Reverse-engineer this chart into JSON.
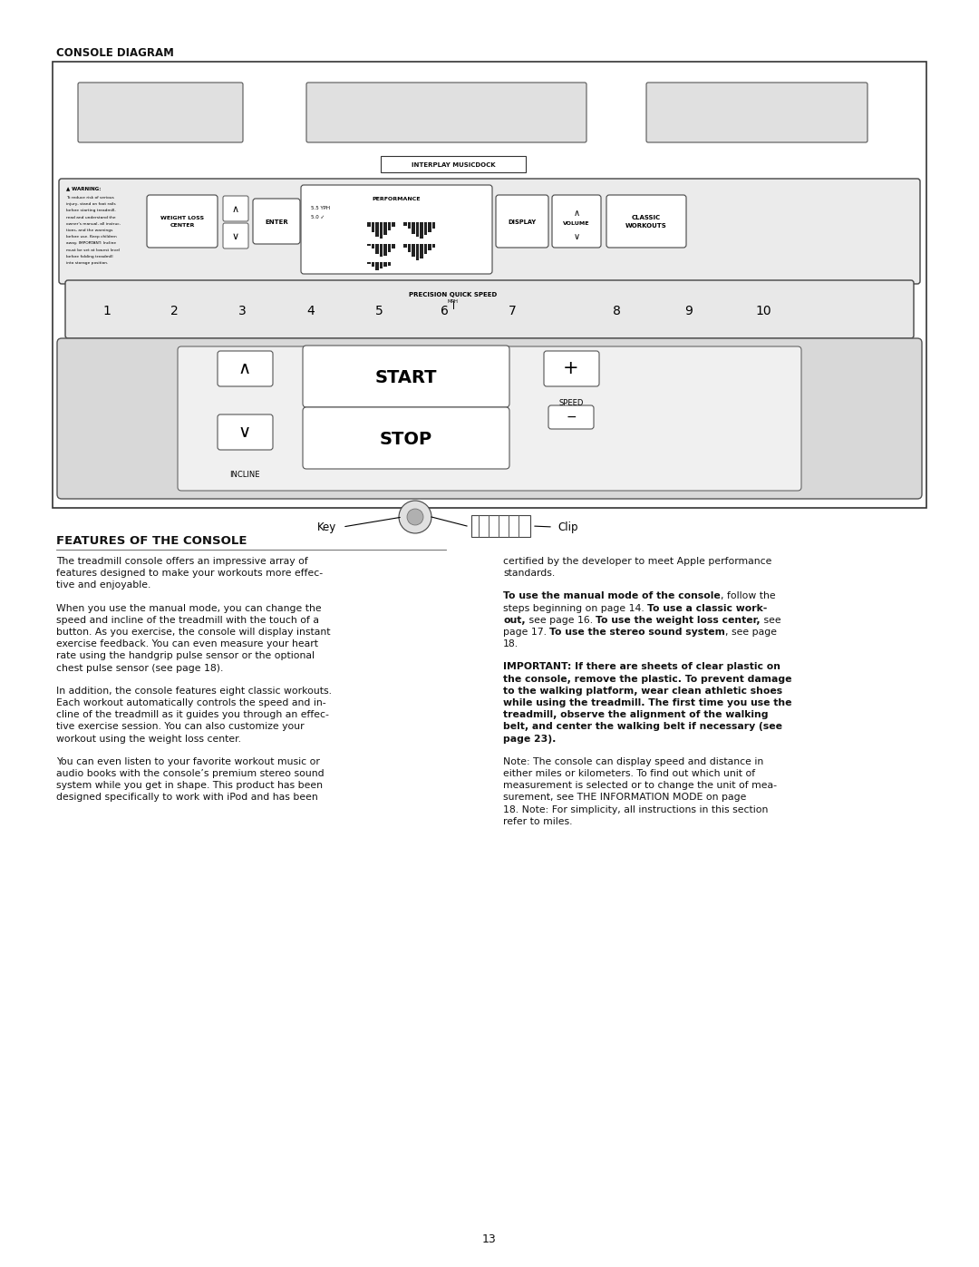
{
  "page_title": "CONSOLE DIAGRAM",
  "section_title": "FEATURES OF THE CONSOLE",
  "page_number": "13",
  "bg_color": "#ffffff",
  "text_color": "#1a1a1a",
  "warning_lines": [
    "To reduce risk of serious",
    "injury, stand on foot rails",
    "before starting treadmill,",
    "read and understand the",
    "owner's manual, all instruc-",
    "tions, and the warnings",
    "before use. Keep children",
    "away. IMPORTANT: Incline",
    "must be set at lowest level",
    "before folding treadmill",
    "into storage position."
  ],
  "num_buttons": [
    "1",
    "2",
    "3",
    "4",
    "5",
    "6",
    "7",
    "8",
    "9",
    "10"
  ],
  "left_paragraphs": [
    "The treadmill console offers an impressive array of\nfeatures designed to make your workouts more effec-\ntive and enjoyable.",
    "When you use the manual mode, you can change the\nspeed and incline of the treadmill with the touch of a\nbutton. As you exercise, the console will display instant\nexercise feedback. You can even measure your heart\nrate using the handgrip pulse sensor or the optional\nchest pulse sensor (see page 18).",
    "In addition, the console features eight classic workouts.\nEach workout automatically controls the speed and in-\ncline of the treadmill as it guides you through an effec-\ntive exercise session. You can also customize your\nworkout using the weight loss center.",
    "You can even listen to your favorite workout music or\naudio books with the console’s premium stereo sound\nsystem while you get in shape. This product has been\ndesigned specifically to work with iPod and has been"
  ],
  "right_p1": "certified by the developer to meet Apple performance\nstandards.",
  "right_p4": "Note: The console can display speed and distance in\neither miles or kilometers. To find out which unit of\nmeasurement is selected or to change the unit of mea-\nsurement, see THE INFORMATION MODE on page\n18. Note: For simplicity, all instructions in this section\nrefer to miles.",
  "important_text": "IMPORTANT: If there are sheets of clear plastic on\nthe console, remove the plastic. To prevent damage\nto the walking platform, wear clean athletic shoes\nwhile using the treadmill. The first time you use the\ntreadmill, observe the alignment of the walking\nbelt, and center the walking belt if necessary (see\npage 23)."
}
